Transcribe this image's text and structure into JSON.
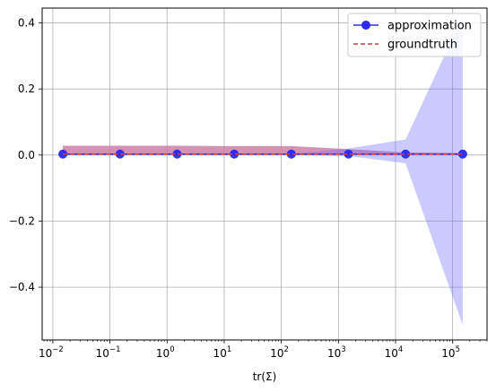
{
  "chart_data": {
    "type": "line",
    "title": "",
    "xlabel": "tr(Σ)",
    "ylabel": "",
    "x_scale": "log",
    "xlim": [
      0.0065,
      400000
    ],
    "ylim": [
      -0.56,
      0.445
    ],
    "grid": true,
    "legend_position": "top-right",
    "x": [
      0.015,
      0.15,
      1.5,
      15,
      150,
      1500,
      15000,
      150000
    ],
    "x_ticks": [
      {
        "value": 0.01,
        "base": "10",
        "exp": "−2"
      },
      {
        "value": 0.1,
        "base": "10",
        "exp": "−1"
      },
      {
        "value": 1,
        "base": "10",
        "exp": "0"
      },
      {
        "value": 10,
        "base": "10",
        "exp": "1"
      },
      {
        "value": 100,
        "base": "10",
        "exp": "2"
      },
      {
        "value": 1000,
        "base": "10",
        "exp": "3"
      },
      {
        "value": 10000,
        "base": "10",
        "exp": "4"
      },
      {
        "value": 100000,
        "base": "10",
        "exp": "5"
      }
    ],
    "y_ticks": [
      {
        "value": 0.4,
        "label": "0.4"
      },
      {
        "value": 0.2,
        "label": "0.2"
      },
      {
        "value": 0.0,
        "label": "0.0"
      },
      {
        "value": -0.2,
        "label": "−0.2"
      },
      {
        "value": -0.4,
        "label": "−0.4"
      }
    ],
    "series": [
      {
        "name": "approximation",
        "style": "line-marker",
        "color": "#2a2af0",
        "values": [
          0.003,
          0.003,
          0.003,
          0.003,
          0.003,
          0.003,
          0.003,
          0.003
        ]
      },
      {
        "name": "groundtruth",
        "style": "dashed",
        "color": "#e03a3a",
        "values": [
          0.003,
          0.003,
          0.003,
          0.003,
          0.003,
          0.003,
          0.003,
          0.003
        ]
      }
    ],
    "bands": [
      {
        "color": "#cd7fa8",
        "opacity": 0.85,
        "upper": [
          0.028,
          0.028,
          0.028,
          0.027,
          0.027,
          0.018,
          0.008,
          0.006
        ],
        "lower": [
          0.003,
          0.003,
          0.003,
          0.003,
          0.003,
          0.003,
          0.003,
          0.003
        ]
      },
      {
        "color": "#6666ff",
        "opacity": 0.35,
        "upper": [
          0.003,
          0.003,
          0.003,
          0.003,
          0.003,
          0.02,
          0.047,
          0.42
        ],
        "lower": [
          0.0,
          0.0,
          0.0,
          0.0,
          0.0,
          -0.003,
          -0.025,
          -0.515
        ]
      }
    ]
  }
}
